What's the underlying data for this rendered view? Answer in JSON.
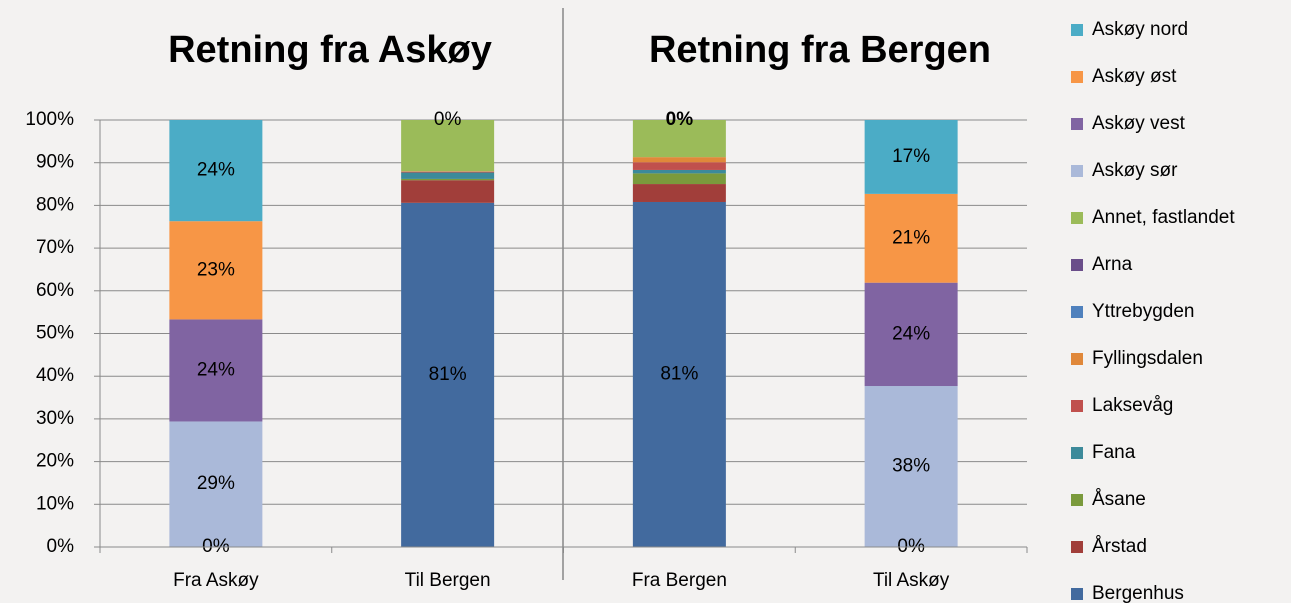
{
  "chart_data": {
    "type": "stacked_bar",
    "titles": [
      "Retning fra Askøy",
      "Retning fra Bergen"
    ],
    "categories": [
      "Fra Askøy",
      "Til Bergen",
      "Fra Bergen",
      "Til Askøy"
    ],
    "ylim": [
      0,
      100
    ],
    "yticks": [
      {
        "value": 0,
        "label": "0%"
      },
      {
        "value": 10,
        "label": "10%"
      },
      {
        "value": 20,
        "label": "20%"
      },
      {
        "value": 30,
        "label": "30%"
      },
      {
        "value": 40,
        "label": "40%"
      },
      {
        "value": 50,
        "label": "50%"
      },
      {
        "value": 60,
        "label": "60%"
      },
      {
        "value": 70,
        "label": "70%"
      },
      {
        "value": 80,
        "label": "80%"
      },
      {
        "value": 90,
        "label": "90%"
      },
      {
        "value": 100,
        "label": "100%"
      }
    ],
    "grid": true,
    "legend": "right",
    "series": [
      {
        "name": "Bergenhus",
        "color": "#426a9e",
        "values": [
          0,
          80.6,
          80.8,
          0
        ],
        "value_labels": [
          "0%",
          "81%",
          "81%",
          "0%"
        ]
      },
      {
        "name": "Årstad",
        "color": "#a13e3a",
        "values": [
          0,
          5.3,
          4.2,
          0
        ]
      },
      {
        "name": "Åsane",
        "color": "#7a9a3c",
        "values": [
          0,
          0.3,
          2.5,
          0
        ]
      },
      {
        "name": "Fana",
        "color": "#3c8a9a",
        "values": [
          0,
          1.5,
          0.8,
          0
        ]
      },
      {
        "name": "Laksevåg",
        "color": "#c0504d",
        "values": [
          0,
          0.2,
          1.8,
          0
        ]
      },
      {
        "name": "Fyllingsdalen",
        "color": "#e0883a",
        "values": [
          0,
          0.1,
          1.2,
          0
        ]
      },
      {
        "name": "Yttrebygden",
        "color": "#4f81bd",
        "values": [
          0,
          0,
          0,
          0
        ]
      },
      {
        "name": "Arna",
        "color": "#6a4e8a",
        "values": [
          0,
          0,
          0,
          0
        ]
      },
      {
        "name": "Annet, fastlandet",
        "color": "#9bbb59",
        "values": [
          0,
          12,
          8.7,
          0
        ]
      },
      {
        "name": "Askøy sør",
        "color": "#aab9d9",
        "values": [
          29.4,
          0,
          0,
          37.7
        ],
        "value_labels": [
          "29%",
          null,
          null,
          "38%"
        ]
      },
      {
        "name": "Askøy vest",
        "color": "#8064a2",
        "values": [
          23.9,
          0,
          0,
          24.2
        ],
        "value_labels": [
          "24%",
          null,
          null,
          "24%"
        ]
      },
      {
        "name": "Askøy øst",
        "color": "#f79646",
        "values": [
          23,
          0,
          0,
          20.8
        ],
        "value_labels": [
          "23%",
          null,
          null,
          "21%"
        ]
      },
      {
        "name": "Askøy nord",
        "color": "#4bacc6",
        "values": [
          23.7,
          0,
          0,
          17.3
        ],
        "value_labels": [
          "24%",
          "0%",
          "0%",
          "17%"
        ]
      }
    ]
  }
}
